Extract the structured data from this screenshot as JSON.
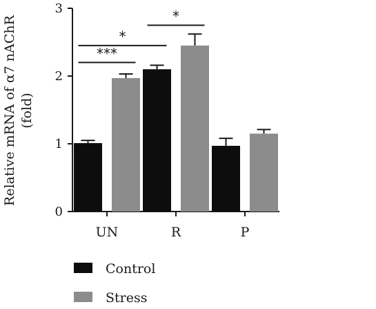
{
  "chart_data": {
    "type": "bar",
    "title": "",
    "ylabel_line1": "Relative mRNA of α7 nAChR",
    "ylabel_line2": "(fold)",
    "categories": [
      "UN",
      "R",
      "P"
    ],
    "ylim": [
      0,
      3
    ],
    "yticks": [
      "0",
      "1",
      "2",
      "3"
    ],
    "series": [
      {
        "name": "Control",
        "color": "#0d0d0d",
        "values": [
          1.01,
          2.1,
          0.97
        ],
        "errors": [
          0.04,
          0.06,
          0.11
        ]
      },
      {
        "name": "Stress",
        "color": "#8c8c8c",
        "values": [
          1.97,
          2.45,
          1.15
        ],
        "errors": [
          0.06,
          0.17,
          0.06
        ]
      }
    ],
    "significance": [
      {
        "label": "***",
        "from": {
          "category": 0,
          "series": 0
        },
        "to": {
          "category": 0,
          "series": 1
        },
        "y": 2.2
      },
      {
        "label": "*",
        "from": {
          "category": 0,
          "series": 0
        },
        "to": {
          "category": 1,
          "series": 0
        },
        "y": 2.45
      },
      {
        "label": "*",
        "from": {
          "category": 1,
          "series": 0
        },
        "to": {
          "category": 1,
          "series": 1
        },
        "y": 2.75
      }
    ],
    "legend_position": "bottom-left",
    "grid": false
  }
}
